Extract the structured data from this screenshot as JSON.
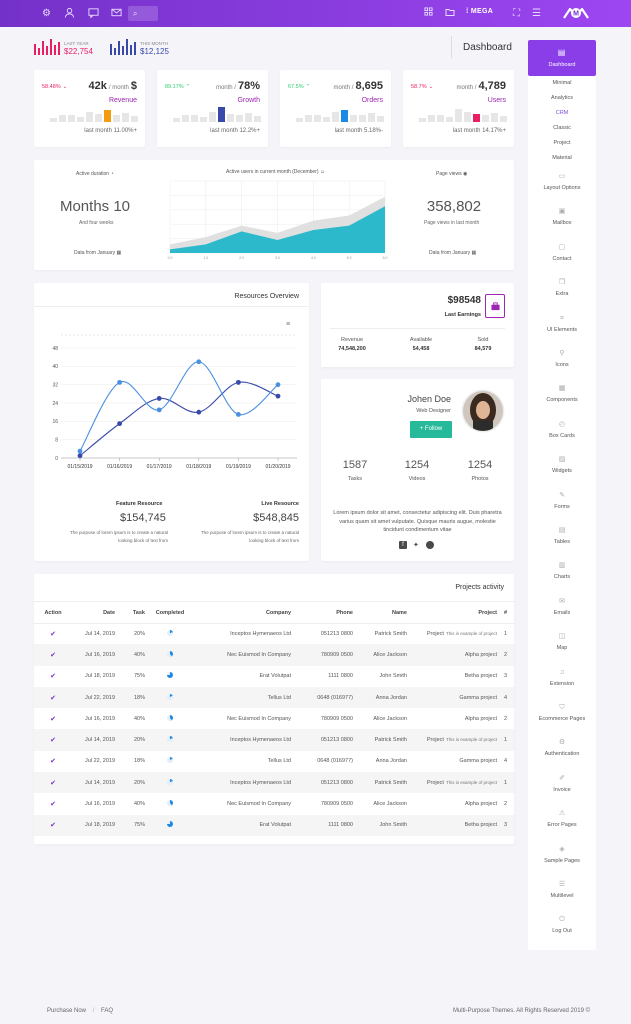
{
  "topbar": {
    "icons": [
      "gear-icon",
      "user-icon",
      "chat-icon",
      "mail-icon"
    ],
    "search_icon": "search-icon",
    "right_icons": [
      "grid-icon",
      "folder-icon"
    ],
    "mega_label": "MEGA",
    "expand_icon": "expand-icon",
    "menu_icon": "menu-icon",
    "logo_text": "M"
  },
  "summary": {
    "last_year_label": "LAST YEAR",
    "last_year_value": "$22,754",
    "this_month_label": "THIS MONTH",
    "this_month_value": "$12,125",
    "page_title": "Dashboard",
    "colors": {
      "last_year": "#e91e63",
      "this_month": "#3949ab"
    }
  },
  "kpis": [
    {
      "pct": "58.48%",
      "pct_dir": "down",
      "pct_color": "#e91e63",
      "value": "42k",
      "unit": "/ month",
      "suffix": "$",
      "label": "Revenue",
      "label_color": "#9c27b0",
      "foot": "last month 11.00%+",
      "accent": "#f39c12",
      "bars": [
        0.3,
        0.45,
        0.5,
        0.35,
        0.65,
        0.55,
        0.8,
        0.45,
        0.6,
        0.4
      ],
      "highlight": 6
    },
    {
      "pct": "89.17%",
      "pct_dir": "up",
      "pct_color": "#2ecc71",
      "value": "78%",
      "unit": "month /",
      "suffix": "",
      "label": "Growth",
      "label_color": "#9c27b0",
      "foot": "last month 12.2%+",
      "accent": "#3949ab",
      "bars": [
        0.3,
        0.45,
        0.5,
        0.35,
        0.65,
        1.0,
        0.55,
        0.45,
        0.6,
        0.4
      ],
      "highlight": 5
    },
    {
      "pct": "67.5%",
      "pct_dir": "up",
      "pct_color": "#2ecc71",
      "value": "8,695",
      "unit": "month /",
      "suffix": "",
      "label": "Orders",
      "label_color": "#9c27b0",
      "foot": "last month 5.18%-",
      "accent": "#1e88e5",
      "bars": [
        0.3,
        0.45,
        0.5,
        0.35,
        0.65,
        0.8,
        0.5,
        0.45,
        0.6,
        0.4
      ],
      "highlight": 5
    },
    {
      "pct": "58.7%",
      "pct_dir": "down",
      "pct_color": "#e91e63",
      "value": "4,789",
      "unit": "month /",
      "suffix": "",
      "label": "Users",
      "label_color": "#9c27b0",
      "foot": "last month 14.17%+",
      "accent": "#e91e63",
      "bars": [
        0.3,
        0.45,
        0.5,
        0.35,
        0.85,
        0.65,
        0.55,
        0.45,
        0.6,
        0.4
      ],
      "highlight": 6
    }
  ],
  "activity": {
    "left_title": "Active duration",
    "left_value": "Months 10",
    "left_sub": "And four weeks",
    "left_foot": "Data from January",
    "center_title": "Active users in current month (December)",
    "right_title": "Page views",
    "right_value": "358,802",
    "right_sub": "Page views in last month",
    "right_foot": "Data from January",
    "clock_icon": "clock-icon",
    "users_icon": "users-icon",
    "eye_icon": "eye-icon",
    "calendar_icon": "calendar-icon"
  },
  "chart_data": [
    {
      "type": "area",
      "title": "Active users in current month (December)",
      "x": [
        "0.0",
        "1.0",
        "2.0",
        "3.0",
        "4.0",
        "5.0",
        "6.0"
      ],
      "ylim": [
        0,
        100
      ],
      "series": [
        {
          "values": [
            12,
            22,
            38,
            28,
            45,
            52,
            78
          ],
          "color": "#e0e0e0"
        },
        {
          "values": [
            5,
            12,
            30,
            18,
            32,
            38,
            65
          ],
          "color": "#2db9cc"
        }
      ],
      "grid": true
    },
    {
      "type": "line",
      "title": "Resources Overview",
      "categories": [
        "01/15/2019",
        "01/16/2019",
        "01/17/2019",
        "01/18/2019",
        "01/19/2019",
        "01/20/2019"
      ],
      "ylim": [
        0,
        48
      ],
      "yticks": [
        0,
        8,
        16,
        24,
        32,
        40,
        48
      ],
      "series": [
        {
          "values": [
            1,
            15,
            26,
            20,
            33,
            27
          ],
          "color": "#3949ab"
        },
        {
          "values": [
            3,
            33,
            21,
            42,
            19,
            32
          ],
          "color": "#4a90e2"
        }
      ],
      "grid": true
    }
  ],
  "resources": {
    "title": "Resources Overview",
    "hamburger_icon": "hamburger-icon",
    "feature_label": "Feature Resource",
    "feature_value": "$154,745",
    "feature_desc": "The purpose of lorem ipsum is to create a natural looking block of text from",
    "live_label": "Live Resource",
    "live_value": "$548,845",
    "live_desc": "The purpose of lorem ipsum is to create a natural looking block of text from"
  },
  "earnings": {
    "value": "$98548",
    "label": "Last Earnings",
    "briefcase_icon": "briefcase-icon",
    "stats": [
      {
        "label": "Revenue",
        "value": "74,548,200"
      },
      {
        "label": "Available",
        "value": "54,458"
      },
      {
        "label": "Sold",
        "value": "84,579"
      }
    ]
  },
  "profile": {
    "name": "Johen Doe",
    "role": "Web Designer",
    "follow_label": "+ Follow",
    "stats": [
      {
        "value": "1587",
        "label": "Tasks"
      },
      {
        "value": "1254",
        "label": "Videos"
      },
      {
        "value": "1254",
        "label": "Photos"
      }
    ],
    "bio": "Lorem ipsum dolor sit amet, consectetur adipiscing elit. Duis pharetra varius quam sit amet vulputate. Quisque mauris augue, molestie tincidunt condimentum vitae",
    "social": [
      "facebook-icon",
      "twitter-icon",
      "globe-icon"
    ]
  },
  "projects": {
    "title": "Projects activity",
    "headers": [
      "Action",
      "Date",
      "Task",
      "Completed",
      "Company",
      "Phone",
      "Name",
      "Project",
      "#"
    ],
    "rows": [
      {
        "date": "Jul 14, 2019",
        "task": "20%",
        "pct": 20,
        "company": "Inceptos Hymenaeos Ltd",
        "phone": "051213 0800",
        "name": "Patrick Smith",
        "project": "Project",
        "project_note": "This is example of project",
        "num": "1"
      },
      {
        "date": "Jul 16, 2019",
        "task": "40%",
        "pct": 40,
        "company": "Nec Euismod In Company",
        "phone": "780909 0500",
        "name": "Alice Jackson",
        "project": "Alpha project",
        "project_note": "",
        "num": "2"
      },
      {
        "date": "Jul 18, 2019",
        "task": "75%",
        "pct": 75,
        "company": "Erat Volutpat",
        "phone": "1111 0800",
        "name": "John Smith",
        "project": "Betha project",
        "project_note": "",
        "num": "3"
      },
      {
        "date": "Jul 22, 2019",
        "task": "18%",
        "pct": 18,
        "company": "Tellus Ltd",
        "phone": "0648 (016977)",
        "name": "Anna Jordan",
        "project": "Gamma project",
        "project_note": "",
        "num": "4"
      },
      {
        "date": "Jul 16, 2019",
        "task": "40%",
        "pct": 40,
        "company": "Nec Euismod In Company",
        "phone": "780909 0500",
        "name": "Alice Jackson",
        "project": "Alpha project",
        "project_note": "",
        "num": "2"
      },
      {
        "date": "Jul 14, 2019",
        "task": "20%",
        "pct": 20,
        "company": "Inceptos Hymenaeos Ltd",
        "phone": "051213 0800",
        "name": "Patrick Smith",
        "project": "Project",
        "project_note": "This is example of project",
        "num": "1"
      },
      {
        "date": "Jul 22, 2019",
        "task": "18%",
        "pct": 18,
        "company": "Tellus Ltd",
        "phone": "0648 (016977)",
        "name": "Anna Jordan",
        "project": "Gamma project",
        "project_note": "",
        "num": "4"
      },
      {
        "date": "Jul 14, 2019",
        "task": "20%",
        "pct": 20,
        "company": "Inceptos Hymenaeos Ltd",
        "phone": "051213 0800",
        "name": "Patrick Smith",
        "project": "Project",
        "project_note": "This is example of project",
        "num": "1"
      },
      {
        "date": "Jul 16, 2019",
        "task": "40%",
        "pct": 40,
        "company": "Nec Euismod In Company",
        "phone": "780909 0500",
        "name": "Alice Jackson",
        "project": "Alpha project",
        "project_note": "",
        "num": "2"
      },
      {
        "date": "Jul 18, 2019",
        "task": "75%",
        "pct": 75,
        "company": "Erat Volutpat",
        "phone": "1111 0800",
        "name": "John Smith",
        "project": "Betha project",
        "project_note": "",
        "num": "3"
      }
    ]
  },
  "sidebar": {
    "active": {
      "label": "Dashboard",
      "icon": "dashboard-icon"
    },
    "sub_items": [
      "Minimal",
      "Analytics",
      "CRM",
      "Classic",
      "Project",
      "Material"
    ],
    "sub_active_index": 2,
    "items": [
      {
        "label": "Layout Options",
        "icon": "monitor-icon"
      },
      {
        "label": "Mailbox",
        "icon": "inbox-icon"
      },
      {
        "label": "Contact",
        "icon": "contact-icon"
      },
      {
        "label": "Extra",
        "icon": "copy-icon"
      },
      {
        "label": "UI Elements",
        "icon": "crop-icon"
      },
      {
        "label": "Icons",
        "icon": "pin-icon"
      },
      {
        "label": "Components",
        "icon": "box-icon"
      },
      {
        "label": "Box Cards",
        "icon": "gauge-icon"
      },
      {
        "label": "Widgets",
        "icon": "image-icon"
      },
      {
        "label": "Forms",
        "icon": "edit-icon"
      },
      {
        "label": "Tables",
        "icon": "table-icon"
      },
      {
        "label": "Charts",
        "icon": "chart-icon"
      },
      {
        "label": "Emails",
        "icon": "envelope-icon"
      },
      {
        "label": "Map",
        "icon": "map-icon"
      },
      {
        "label": "Extension",
        "icon": "music-icon"
      },
      {
        "label": "Ecommerce Pages",
        "icon": "basket-icon"
      },
      {
        "label": "Authentication",
        "icon": "settings-icon"
      },
      {
        "label": "Invoice",
        "icon": "pen-icon"
      },
      {
        "label": "Error Pages",
        "icon": "warning-icon"
      },
      {
        "label": "Sample Pages",
        "icon": "layers-icon"
      },
      {
        "label": "Multilevel",
        "icon": "list-icon"
      },
      {
        "label": "Log Out",
        "icon": "power-icon"
      }
    ]
  },
  "footer": {
    "purchase": "Purchase Now",
    "faq": "FAQ",
    "copyright": "Multi-Purpose Themes. All Rights Reserved 2019 ©"
  }
}
